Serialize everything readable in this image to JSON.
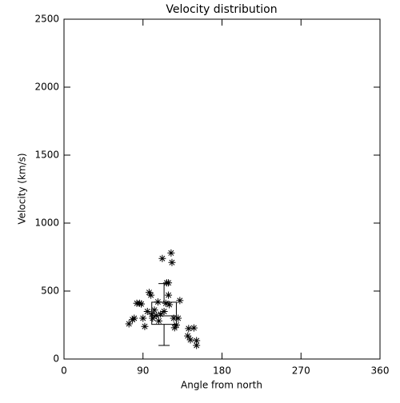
{
  "chart_data": {
    "type": "scatter",
    "title": "Velocity distribution",
    "x_label": "Angle from north",
    "y_label": "Velocity (km/s)",
    "xlim": [
      0,
      360
    ],
    "xticks": [
      0,
      90,
      180,
      270,
      360
    ],
    "ylim": [
      0,
      2500
    ],
    "yticks": [
      0,
      500,
      1000,
      1500,
      2000,
      2500
    ],
    "color": "#000000",
    "x": [
      74,
      78,
      80,
      83,
      86,
      88,
      90,
      92,
      95,
      97,
      99,
      100,
      101,
      103,
      105,
      107,
      108,
      110,
      112,
      114,
      116,
      117,
      119,
      119,
      120,
      122,
      123,
      125,
      126,
      128,
      130,
      132,
      141,
      142,
      144,
      148,
      151,
      151
    ],
    "values": [
      259,
      290,
      300,
      410,
      410,
      405,
      300,
      240,
      350,
      490,
      470,
      330,
      300,
      360,
      320,
      420,
      280,
      330,
      740,
      350,
      410,
      560,
      560,
      470,
      400,
      780,
      710,
      300,
      230,
      250,
      300,
      430,
      170,
      224,
      141,
      229,
      135,
      100
    ],
    "box": {
      "x": 114,
      "x_low": 100,
      "x_high": 128,
      "whisker_low": 100,
      "q1": 255,
      "median": 318,
      "q3": 418,
      "whisker_high": 555
    }
  }
}
